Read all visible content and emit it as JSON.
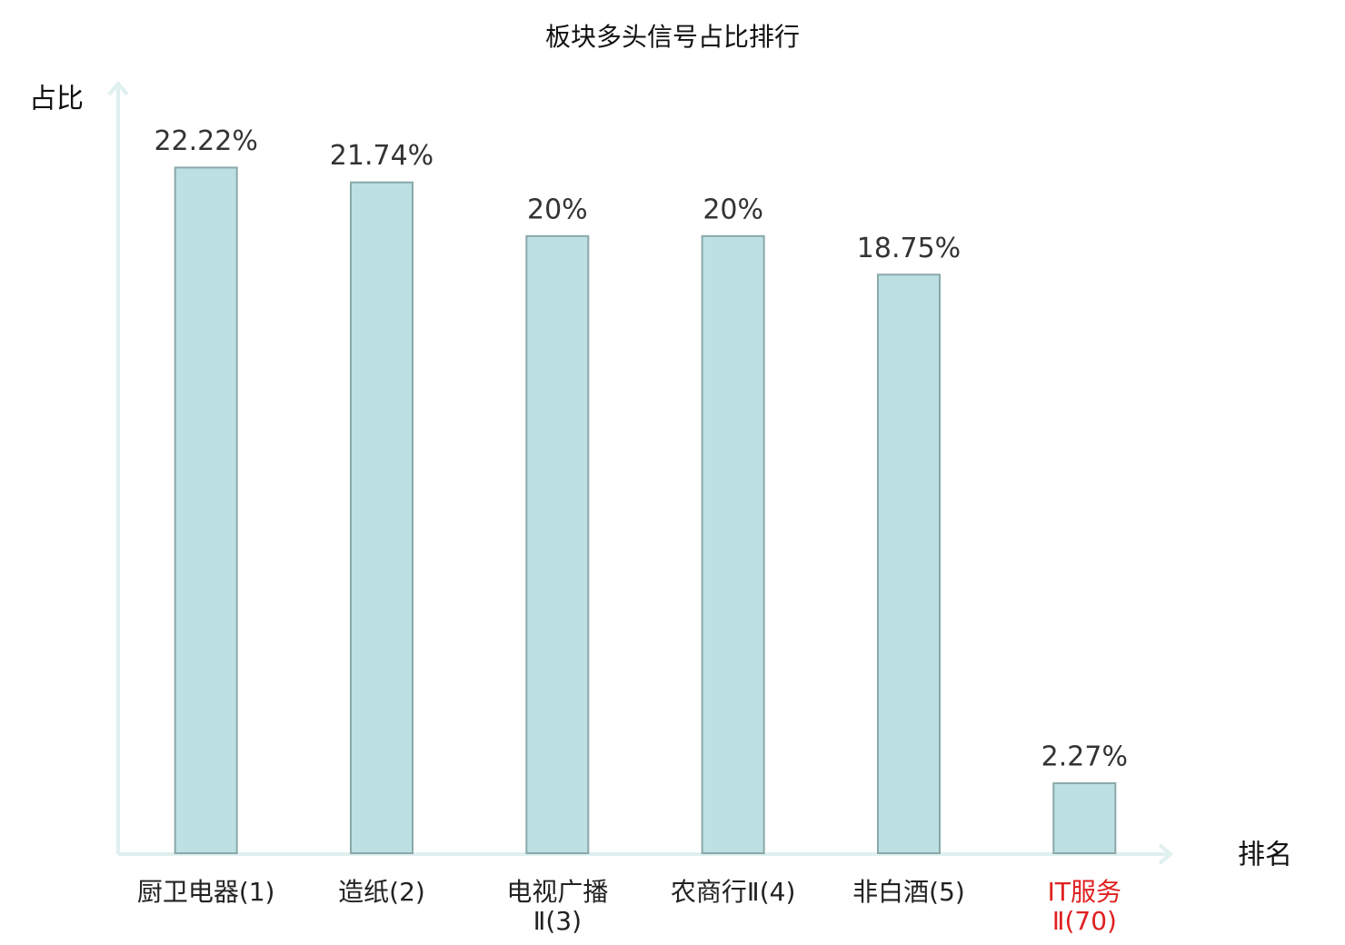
{
  "chart_data": {
    "type": "bar",
    "title": "板块多头信号占比排行",
    "y_label": "占比",
    "x_label": "排名",
    "categories": [
      "厨卫电器(1)",
      "造纸(2)",
      "电视广播\nⅡ(3)",
      "农商行Ⅱ(4)",
      "非白酒(5)",
      "IT服务\nⅡ(70)"
    ],
    "category_colors": [
      "#222222",
      "#222222",
      "#222222",
      "#222222",
      "#222222",
      "#e02020"
    ],
    "values": [
      22.22,
      21.74,
      20,
      20,
      18.75,
      2.27
    ],
    "value_labels": [
      "22.22%",
      "21.74%",
      "20%",
      "20%",
      "18.75%",
      "2.27%"
    ],
    "color": "#bde0e3",
    "edge_color": "#8aa8aa",
    "ylim": [
      0,
      25
    ]
  }
}
